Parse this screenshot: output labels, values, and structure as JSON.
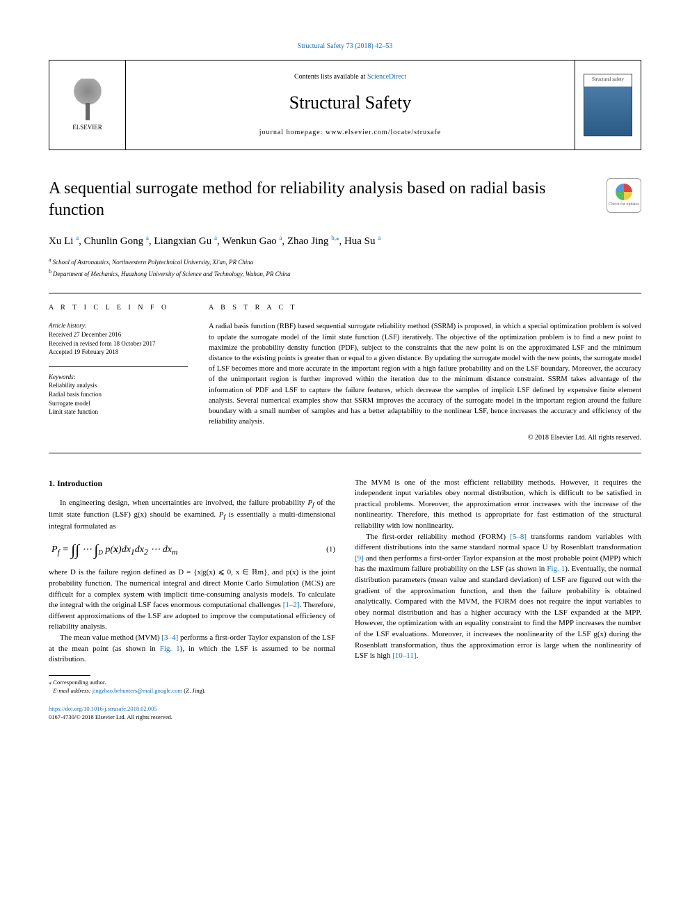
{
  "top_citation": "Structural Safety 73 (2018) 42–53",
  "header": {
    "contents_prefix": "Contents lists available at ",
    "contents_link": "ScienceDirect",
    "journal_title": "Structural Safety",
    "homepage_prefix": "journal homepage: ",
    "homepage_url": "www.elsevier.com/locate/strusafe",
    "publisher": "ELSEVIER",
    "cover_label": "Structural safety"
  },
  "article": {
    "title": "A sequential surrogate method for reliability analysis based on radial basis function",
    "crossmark_label": "Check for updates",
    "authors_html": "Xu Li|a|, Chunlin Gong|a|, Liangxian Gu|a|, Wenkun Gao|a|, Zhao Jing|b,*|, Hua Su|a|",
    "authors": [
      {
        "name": "Xu Li",
        "affil": "a"
      },
      {
        "name": "Chunlin Gong",
        "affil": "a"
      },
      {
        "name": "Liangxian Gu",
        "affil": "a"
      },
      {
        "name": "Wenkun Gao",
        "affil": "a"
      },
      {
        "name": "Zhao Jing",
        "affil": "b,⁎"
      },
      {
        "name": "Hua Su",
        "affil": "a"
      }
    ],
    "affiliations": [
      {
        "label": "a",
        "text": "School of Astronautics, Northwestern Polytechnical University, Xi'an, PR China"
      },
      {
        "label": "b",
        "text": "Department of Mechanics, Huazhong University of Science and Technology, Wuhan, PR China"
      }
    ]
  },
  "info": {
    "heading": "A R T I C L E   I N F O",
    "history_heading": "Article history:",
    "history": [
      "Received 27 December 2016",
      "Received in revised form 18 October 2017",
      "Accepted 19 February 2018"
    ],
    "keywords_heading": "Keywords:",
    "keywords": [
      "Reliability analysis",
      "Radial basis function",
      "Surrogate model",
      "Limit state function"
    ]
  },
  "abstract": {
    "heading": "A B S T R A C T",
    "text": "A radial basis function (RBF) based sequential surrogate reliability method (SSRM) is proposed, in which a special optimization problem is solved to update the surrogate model of the limit state function (LSF) iteratively. The objective of the optimization problem is to find a new point to maximize the probability density function (PDF), subject to the constraints that the new point is on the approximated LSF and the minimum distance to the existing points is greater than or equal to a given distance. By updating the surrogate model with the new points, the surrogate model of LSF becomes more and more accurate in the important region with a high failure probability and on the LSF boundary. Moreover, the accuracy of the unimportant region is further improved within the iteration due to the minimum distance constraint. SSRM takes advantage of the information of PDF and LSF to capture the failure features, which decrease the samples of implicit LSF defined by expensive finite element analysis. Several numerical examples show that SSRM improves the accuracy of the surrogate model in the important region around the failure boundary with a small number of samples and has a better adaptability to the nonlinear LSF, hence increases the accuracy and efficiency of the reliability analysis.",
    "copyright": "© 2018 Elsevier Ltd. All rights reserved."
  },
  "body": {
    "section_heading": "1. Introduction",
    "left_paragraphs": {
      "p1_before": "In engineering design, when uncertainties are involved, the failure probability ",
      "p1_pf": "P",
      "p1_f": "f",
      "p1_mid": " of the limit state function (LSF) g(x) should be examined. ",
      "p1_pf2": "P",
      "p1_f2": "f",
      "p1_after": " is essentially a multi-dimensional integral formulated as",
      "equation": "Pf = ∫∫ ⋯ ∫D p(x)dx1dx2 ⋯ dxm",
      "eq_num": "(1)",
      "p2": "where D is the failure region defined as D = {x|g(x) ⩽ 0, x ∈ ℝm}, and p(x) is the joint probability function. The numerical integral and direct Monte Carlo Simulation (MCS) are difficult for a complex system with implicit time-consuming analysis models. To calculate the integral with the original LSF faces enormous computational challenges ",
      "ref1": "[1–2]",
      "p2_after": ". Therefore, different approximations of the LSF are adopted to improve the computational efficiency of reliability analysis.",
      "p3_before": "The mean value method (MVM) ",
      "ref2": "[3–4]",
      "p3_mid": " performs a first-order Taylor expansion of the LSF at the mean point (as shown in ",
      "fig1": "Fig. 1",
      "p3_after": "), in which the LSF is assumed to be normal distribution."
    },
    "right_paragraphs": {
      "p1": "The MVM is one of the most efficient reliability methods. However, it requires the independent input variables obey normal distribution, which is difficult to be satisfied in practical problems. Moreover, the approximation error increases with the increase of the nonlinearity. Therefore, this method is appropriate for fast estimation of the structural reliability with low nonlinearity.",
      "p2_before": "The first-order reliability method (FORM) ",
      "ref3": "[5–8]",
      "p2_mid1": " transforms random variables with different distributions into the same standard normal space U by Rosenblatt transformation ",
      "ref4": "[9]",
      "p2_mid2": " and then performs a first-order Taylor expansion at the most probable point (MPP) which has the maximum failure probability on the LSF (as shown in ",
      "fig1b": "Fig. 1",
      "p2_mid3": "). Eventually, the normal distribution parameters (mean value and standard deviation) of LSF are figured out with the gradient of the approximation function, and then the failure probability is obtained analytically. Compared with the MVM, the FORM does not require the input variables to obey normal distribution and has a higher accuracy with the LSF expanded at the MPP. However, the optimization with an equality constraint to find the MPP increases the number of the LSF evaluations. Moreover, it increases the nonlinearity of the LSF g(x) during the Rosenblatt transformation, thus the approximation error is large when the nonlinearity of LSF is high ",
      "ref5": "[10–11]",
      "p2_after": "."
    }
  },
  "footnotes": {
    "corresponding": "⁎ Corresponding author.",
    "email_prefix": "E-mail address: ",
    "email": "jingzhao.behunters@mail.google.com",
    "email_suffix": " (Z. Jing)."
  },
  "footer": {
    "doi": "https://doi.org/10.1016/j.strusafe.2018.02.005",
    "issn_line": "0167-4730/© 2018 Elsevier Ltd. All rights reserved."
  },
  "colors": {
    "link": "#1a6eb0",
    "text": "#000000",
    "background": "#ffffff"
  }
}
